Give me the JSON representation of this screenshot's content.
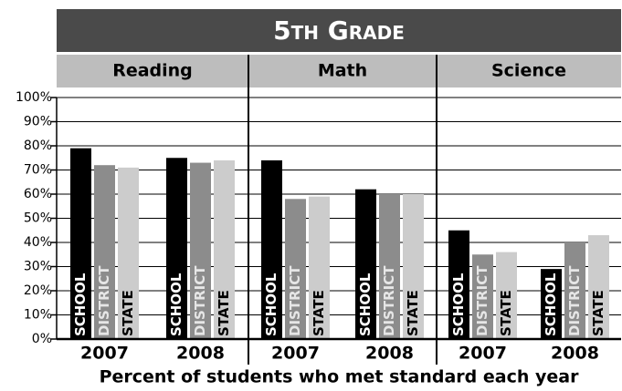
{
  "chart_data": {
    "type": "bar",
    "title": "5th Grade",
    "xlabel": "Percent of students who met standard each year",
    "ylim": [
      0,
      100
    ],
    "yticks": [
      {
        "value": 0,
        "label": "0%"
      },
      {
        "value": 10,
        "label": "10%"
      },
      {
        "value": 20,
        "label": "20%"
      },
      {
        "value": 30,
        "label": "30%"
      },
      {
        "value": 40,
        "label": "40%"
      },
      {
        "value": 50,
        "label": "50%"
      },
      {
        "value": 60,
        "label": "60%"
      },
      {
        "value": 70,
        "label": "70%"
      },
      {
        "value": 80,
        "label": "80%"
      },
      {
        "value": 90,
        "label": "90%"
      },
      {
        "value": 100,
        "label": "100%"
      }
    ],
    "grid": true,
    "panels": [
      {
        "title": "Reading",
        "categories": [
          "2007",
          "2008"
        ],
        "series": [
          {
            "name": "SCHOOL",
            "color": "#000000",
            "values": [
              79,
              75
            ]
          },
          {
            "name": "DISTRICT",
            "color": "#8c8c8c",
            "values": [
              72,
              73
            ]
          },
          {
            "name": "STATE",
            "color": "#cccccc",
            "values": [
              71,
              74
            ]
          }
        ]
      },
      {
        "title": "Math",
        "categories": [
          "2007",
          "2008"
        ],
        "series": [
          {
            "name": "SCHOOL",
            "color": "#000000",
            "values": [
              74,
              62
            ]
          },
          {
            "name": "DISTRICT",
            "color": "#8c8c8c",
            "values": [
              58,
              60
            ]
          },
          {
            "name": "STATE",
            "color": "#cccccc",
            "values": [
              59,
              60
            ]
          }
        ]
      },
      {
        "title": "Science",
        "categories": [
          "2007",
          "2008"
        ],
        "series": [
          {
            "name": "SCHOOL",
            "color": "#000000",
            "values": [
              45,
              29
            ]
          },
          {
            "name": "DISTRICT",
            "color": "#8c8c8c",
            "values": [
              35,
              40
            ]
          },
          {
            "name": "STATE",
            "color": "#cccccc",
            "values": [
              36,
              43
            ]
          }
        ]
      }
    ]
  }
}
